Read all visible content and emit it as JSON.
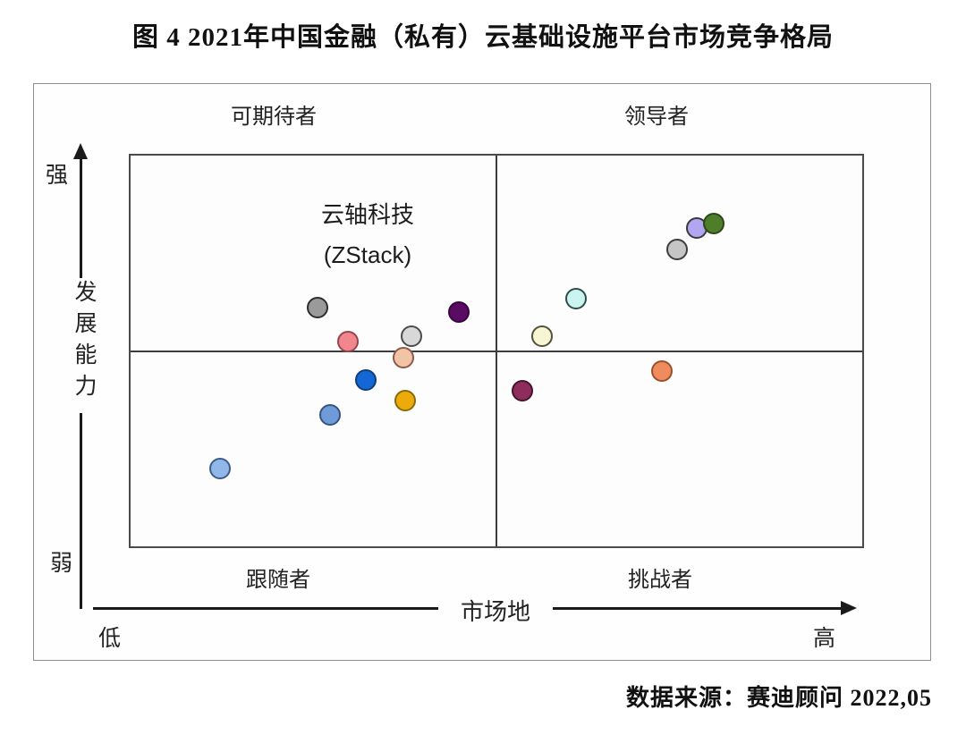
{
  "title": "图 4 2021年中国金融（私有）云基础设施平台市场竞争格局",
  "source": "数据来源：赛迪顾问  2022,05",
  "chart_data": {
    "type": "scatter",
    "title": "图 4 2021年中国金融（私有）云基础设施平台市场竞争格局",
    "quadrant_labels": {
      "top_left": "可期待者",
      "top_right": "领导者",
      "bottom_left": "跟随者",
      "bottom_right": "挑战者"
    },
    "x_axis": {
      "label": "市场地",
      "low": "低",
      "high": "高",
      "range": [
        0,
        100
      ],
      "divider": 50
    },
    "y_axis": {
      "label": "发展能力",
      "high": "强",
      "low": "弱",
      "range": [
        0,
        100
      ],
      "divider": 50
    },
    "annotation": {
      "line1": "云轴科技",
      "line2": "(ZStack)",
      "points_to": "zstack"
    },
    "grid": "quadrant",
    "legend": "none",
    "points": [
      {
        "id": "zstack",
        "x": 44.9,
        "y": 59.9,
        "fill": "#5a0b63",
        "border": "#38073f",
        "quadrant": "可期待者",
        "label": "云轴科技 (ZStack)"
      },
      {
        "id": "gray-medium",
        "x": 25.5,
        "y": 61.0,
        "fill": "#9a9a9a",
        "border": "#2e2e2e",
        "quadrant": "可期待者"
      },
      {
        "id": "pink",
        "x": 29.7,
        "y": 52.4,
        "fill": "#f2868e",
        "border": "#96454c",
        "quadrant": "可期待者"
      },
      {
        "id": "light-gray",
        "x": 38.4,
        "y": 53.7,
        "fill": "#d8d8d8",
        "border": "#4c4c4c",
        "quadrant": "可期待者"
      },
      {
        "id": "peach",
        "x": 37.3,
        "y": 48.3,
        "fill": "#f3c3a8",
        "border": "#8a5b45",
        "quadrant": "跟随者"
      },
      {
        "id": "blue",
        "x": 32.2,
        "y": 42.6,
        "fill": "#1468d5",
        "border": "#103e77",
        "quadrant": "跟随者"
      },
      {
        "id": "gold",
        "x": 37.5,
        "y": 37.4,
        "fill": "#ecab0b",
        "border": "#8a6b06",
        "quadrant": "跟随者"
      },
      {
        "id": "cornflower",
        "x": 27.3,
        "y": 33.6,
        "fill": "#6f9bda",
        "border": "#35547e",
        "quadrant": "跟随者"
      },
      {
        "id": "light-blue",
        "x": 12.2,
        "y": 20.0,
        "fill": "#92b8ea",
        "border": "#3c5c88",
        "quadrant": "跟随者"
      },
      {
        "id": "lavender",
        "x": 77.4,
        "y": 81.4,
        "fill": "#b2a6f2",
        "border": "#3a3a3a",
        "quadrant": "领导者"
      },
      {
        "id": "green",
        "x": 79.7,
        "y": 82.5,
        "fill": "#4f7e2b",
        "border": "#2c4618",
        "quadrant": "领导者"
      },
      {
        "id": "silver",
        "x": 74.7,
        "y": 76.0,
        "fill": "#c5c5c5",
        "border": "#3d3d3d",
        "quadrant": "领导者"
      },
      {
        "id": "pale-cyan",
        "x": 60.9,
        "y": 63.5,
        "fill": "#cbf3ef",
        "border": "#2f4c4c",
        "quadrant": "领导者"
      },
      {
        "id": "cream",
        "x": 56.2,
        "y": 53.7,
        "fill": "#f8f5d4",
        "border": "#52523e",
        "quadrant": "领导者"
      },
      {
        "id": "salmon",
        "x": 72.6,
        "y": 44.9,
        "fill": "#f08b5d",
        "border": "#96522e",
        "quadrant": "挑战者"
      },
      {
        "id": "maroon",
        "x": 53.5,
        "y": 39.9,
        "fill": "#8e2c5c",
        "border": "#43152c",
        "quadrant": "挑战者"
      }
    ]
  }
}
